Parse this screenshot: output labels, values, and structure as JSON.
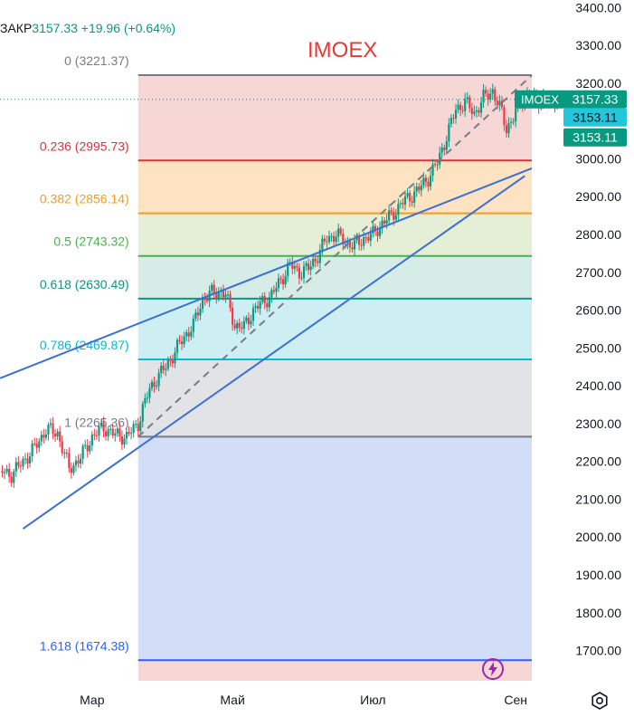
{
  "header": {
    "label": "ЗАКР",
    "price": "3157.33",
    "change": "+19.96 (+0.64%)"
  },
  "chart_data": {
    "type": "candlestick",
    "title": "IMOEX",
    "ylim": [
      1620,
      3420
    ],
    "y_ticks": [
      "3400.00",
      "3300.00",
      "3200.00",
      "3100.00",
      "3000.00",
      "2900.00",
      "2800.00",
      "2700.00",
      "2600.00",
      "2500.00",
      "2400.00",
      "2300.00",
      "2200.00",
      "2100.00",
      "2000.00",
      "1900.00",
      "1800.00",
      "1700.00"
    ],
    "y_tick_values": [
      3400,
      3300,
      3200,
      3100,
      3000,
      2900,
      2800,
      2700,
      2600,
      2500,
      2400,
      2300,
      2200,
      2100,
      2000,
      1900,
      1800,
      1700
    ],
    "x_ticks": [
      "Мар",
      "Май",
      "Июл",
      "Сен"
    ],
    "x_tick_days": [
      60,
      121,
      182,
      244
    ],
    "x_range_days": [
      20,
      262
    ],
    "fib": {
      "start_day": 80,
      "end_day": 251,
      "levels": [
        {
          "label": "0 (3221.37)",
          "value": 3221.37,
          "line": "#787b86",
          "fill": "#f7d6d6"
        },
        {
          "label": "0.236 (2995.73)",
          "value": 2995.73,
          "line": "#e0303b",
          "fill": "#fde3c2"
        },
        {
          "label": "0.382 (2856.14)",
          "value": 2856.14,
          "line": "#f59c1a",
          "fill": "#e4efd6"
        },
        {
          "label": "0.5 (2743.32)",
          "value": 2743.32,
          "line": "#4caf50",
          "fill": "#d5ede6"
        },
        {
          "label": "0.618 (2630.49)",
          "value": 2630.49,
          "line": "#089981",
          "fill": "#cdeff3"
        },
        {
          "label": "0.786 (2469.87)",
          "value": 2469.87,
          "line": "#00bcd4",
          "fill": "#e2e3e6"
        },
        {
          "label": "1 (2265.36)",
          "value": 2265.36,
          "line": "#787b86",
          "fill": "#d2ddf7"
        },
        {
          "label": "1.618 (1674.38)",
          "value": 1674.38,
          "line": "#2962ff",
          "fill": "#f7d6d6"
        }
      ]
    },
    "trendlines": [
      {
        "from": [
          20,
          2420
        ],
        "to": [
          251,
          2975
        ]
      },
      {
        "from": [
          30,
          2022
        ],
        "to": [
          248,
          2955
        ]
      },
      {
        "from": [
          80,
          2265
        ],
        "to": [
          251,
          3221
        ],
        "dashed": true
      }
    ],
    "close_series": {
      "days": [
        20,
        25,
        30,
        35,
        40,
        45,
        50,
        55,
        60,
        65,
        70,
        75,
        80,
        82,
        85,
        88,
        92,
        96,
        100,
        104,
        108,
        112,
        116,
        118,
        122,
        126,
        130,
        134,
        138,
        142,
        146,
        150,
        154,
        158,
        162,
        166,
        170,
        174,
        178,
        182,
        186,
        190,
        194,
        198,
        202,
        206,
        210,
        214,
        218,
        222,
        226,
        230,
        234,
        238,
        240,
        243,
        246,
        249,
        251,
        254,
        256,
        259,
        262
      ],
      "values": [
        2175,
        2165,
        2200,
        2235,
        2285,
        2275,
        2180,
        2210,
        2265,
        2290,
        2270,
        2265,
        2300,
        2340,
        2390,
        2420,
        2450,
        2490,
        2530,
        2560,
        2630,
        2645,
        2650,
        2640,
        2560,
        2555,
        2600,
        2620,
        2640,
        2680,
        2720,
        2700,
        2710,
        2745,
        2790,
        2800,
        2780,
        2770,
        2790,
        2800,
        2830,
        2850,
        2880,
        2900,
        2920,
        2950,
        2990,
        3060,
        3130,
        3150,
        3120,
        3160,
        3180,
        3120,
        3080,
        3110,
        3150,
        3170,
        3150,
        3155,
        3160,
        3150,
        3157
      ]
    },
    "last_value": {
      "label": "IMOEX",
      "price": "3157.33",
      "value": 3157.33,
      "color": "#089981"
    },
    "markers": [
      {
        "price": "3153.11",
        "value": 3153.11,
        "color": "#26c6da",
        "text_color": "#131722"
      },
      {
        "price": "3153.11",
        "value": 3153.11,
        "color": "#089981",
        "text_color": "#ffffff"
      }
    ],
    "colors": {
      "up": "#089981",
      "down": "#f23645",
      "axis_text": "#131722"
    }
  }
}
